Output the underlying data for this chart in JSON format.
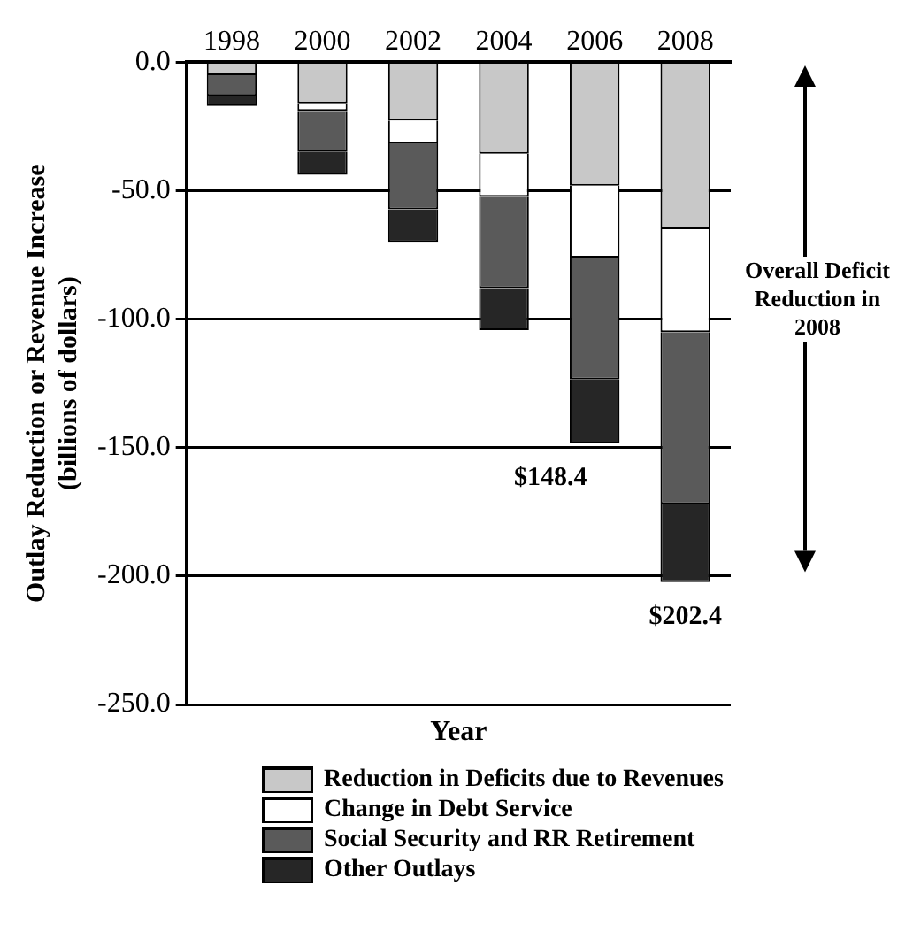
{
  "chart_data": {
    "type": "bar",
    "stacked": true,
    "categories": [
      "1998",
      "2000",
      "2002",
      "2004",
      "2006",
      "2008"
    ],
    "series": [
      {
        "name": "Reduction in Deficits due to Revenues",
        "color": "#c8c8c8",
        "values": [
          -5,
          -16,
          -22.7,
          -35.6,
          -48,
          -65
        ]
      },
      {
        "name": "Change in Debt Service",
        "color": "#ffffff",
        "values": [
          null,
          -2.9,
          -8.9,
          -16.7,
          -28,
          -40
        ]
      },
      {
        "name": "Social Security and RR Retirement",
        "color": "#5a5a5a",
        "values": [
          -8,
          -16,
          -25.6,
          -35.6,
          -47.5,
          -67
        ]
      },
      {
        "name": "Other Outlays",
        "color": "#262626",
        "values": [
          -4,
          -8.9,
          -12.7,
          -16.4,
          -24.9,
          -30.4
        ]
      }
    ],
    "ylim": [
      -250,
      0
    ],
    "yticks": [
      {
        "value": -250,
        "label": "-250.0"
      },
      {
        "value": -200,
        "label": "-200.0"
      },
      {
        "value": -150,
        "label": "-150.0"
      },
      {
        "value": -100,
        "label": "-100.0"
      },
      {
        "value": -50,
        "label": "-50.0"
      },
      {
        "value": 0,
        "label": "0.0"
      }
    ],
    "ylabel": "Outlay Reduction or Revenue Increase (billions of dollars)",
    "xlabel": "Year",
    "grid": "y",
    "legend": "bottom",
    "annotations": [
      {
        "text": "$148.4",
        "x": "2006",
        "y": -148.4
      },
      {
        "text": "$202.4",
        "x": "2008",
        "y": -202.4
      },
      "Overall Deficit Reduction in 2008"
    ]
  }
}
